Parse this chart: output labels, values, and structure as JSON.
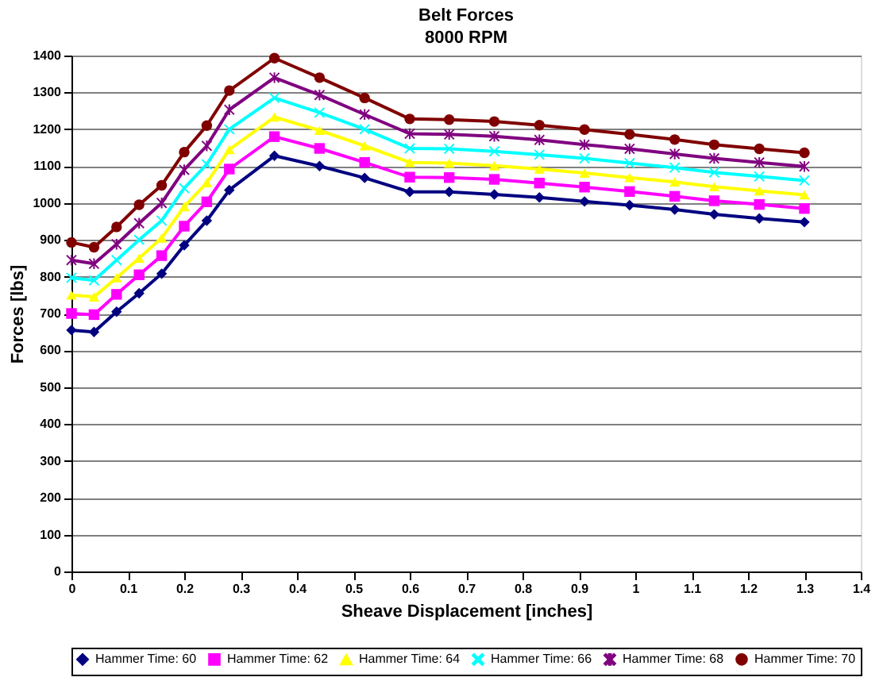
{
  "chart_data": {
    "type": "line",
    "title": "Belt Forces",
    "subtitle": "8000 RPM",
    "xlabel": "Sheave Displacement [inches]",
    "ylabel": "Forces [lbs]",
    "x": [
      0,
      0.04,
      0.08,
      0.12,
      0.16,
      0.2,
      0.24,
      0.28,
      0.36,
      0.44,
      0.52,
      0.6,
      0.67,
      0.75,
      0.83,
      0.91,
      0.99,
      1.07,
      1.14,
      1.22,
      1.3
    ],
    "series": [
      {
        "name": "Hammer Time: 60",
        "color": "#000080",
        "marker": "diamond",
        "values": [
          655,
          650,
          705,
          755,
          808,
          885,
          952,
          1035,
          1128,
          1100,
          1068,
          1030,
          1030,
          1023,
          1015,
          1004,
          994,
          982,
          969,
          958,
          948
        ]
      },
      {
        "name": "Hammer Time: 62",
        "color": "#ff00ff",
        "marker": "square",
        "values": [
          700,
          697,
          752,
          805,
          857,
          937,
          1003,
          1092,
          1180,
          1148,
          1110,
          1070,
          1069,
          1064,
          1054,
          1043,
          1031,
          1018,
          1006,
          996,
          985
        ]
      },
      {
        "name": "Hammer Time: 64",
        "color": "#ffff00",
        "marker": "triangle",
        "values": [
          750,
          745,
          797,
          850,
          905,
          990,
          1055,
          1145,
          1233,
          1197,
          1155,
          1110,
          1108,
          1101,
          1092,
          1081,
          1069,
          1057,
          1044,
          1033,
          1022
        ]
      },
      {
        "name": "Hammer Time: 66",
        "color": "#00ffff",
        "marker": "cross",
        "values": [
          797,
          790,
          845,
          900,
          952,
          1040,
          1105,
          1200,
          1285,
          1245,
          1200,
          1148,
          1147,
          1140,
          1131,
          1121,
          1108,
          1096,
          1083,
          1072,
          1061
        ]
      },
      {
        "name": "Hammer Time: 68",
        "color": "#800080",
        "marker": "star",
        "values": [
          845,
          835,
          888,
          945,
          1000,
          1090,
          1155,
          1253,
          1340,
          1293,
          1240,
          1188,
          1186,
          1181,
          1171,
          1158,
          1147,
          1133,
          1121,
          1110,
          1099
        ]
      },
      {
        "name": "Hammer Time: 70",
        "color": "#800000",
        "marker": "circle",
        "values": [
          893,
          880,
          935,
          995,
          1048,
          1138,
          1210,
          1305,
          1393,
          1340,
          1285,
          1228,
          1226,
          1221,
          1211,
          1199,
          1186,
          1172,
          1158,
          1147,
          1136
        ]
      }
    ],
    "xlim": [
      0,
      1.4
    ],
    "xticks": [
      0,
      0.1,
      0.2,
      0.3,
      0.4,
      0.5,
      0.6,
      0.7,
      0.8,
      0.9,
      1,
      1.1,
      1.2,
      1.3,
      1.4
    ],
    "ylim": [
      0,
      1400
    ],
    "yticks": [
      0,
      100,
      200,
      300,
      400,
      500,
      600,
      700,
      800,
      900,
      1000,
      1100,
      1200,
      1300,
      1400
    ],
    "grid": "y",
    "legend": "bottom",
    "line_style": "solid"
  }
}
